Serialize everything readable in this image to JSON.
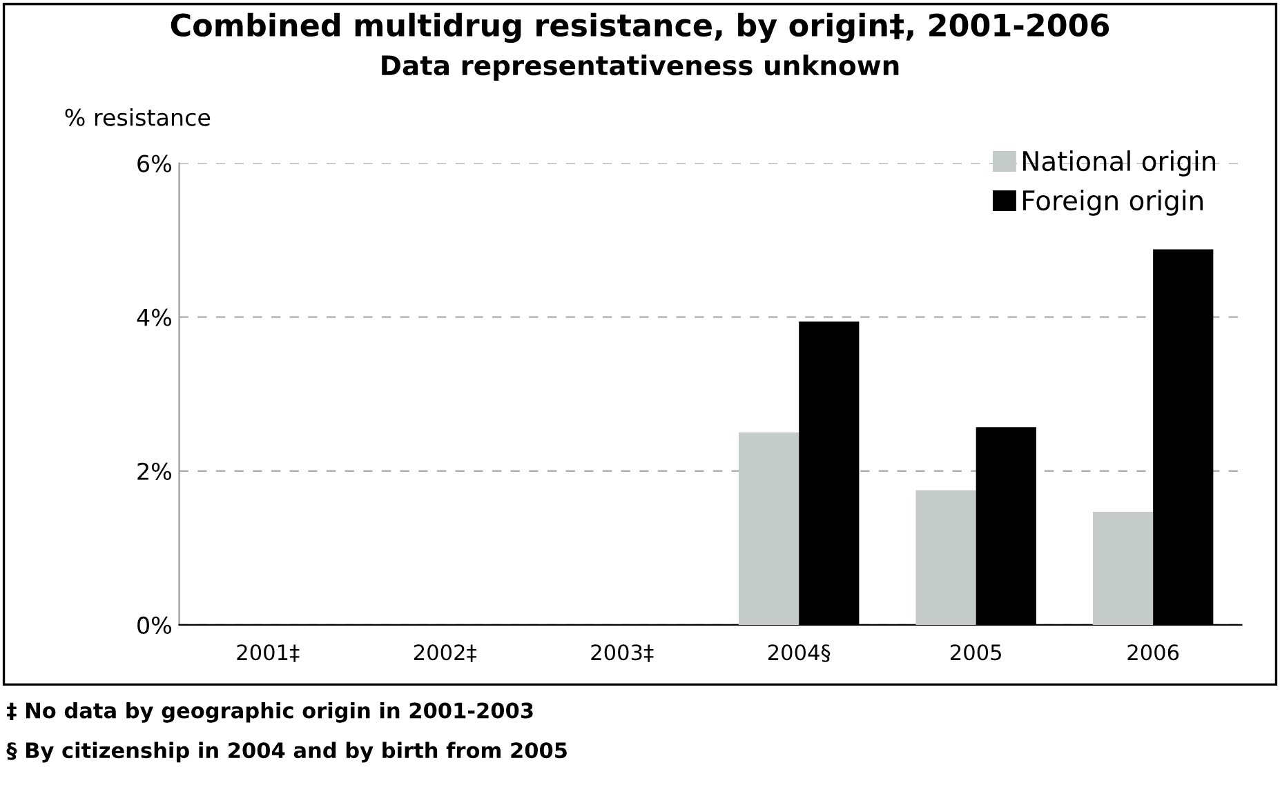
{
  "chart_data": {
    "type": "bar",
    "title": "Combined multidrug resistance, by origin‡, 2001-2006",
    "subtitle": "Data representativeness unknown",
    "ylabel": "% resistance",
    "categories": [
      "2001‡",
      "2002‡",
      "2003‡",
      "2004§",
      "2005",
      "2006"
    ],
    "series": [
      {
        "name": "National origin",
        "color": "#c4cbc8",
        "values": [
          null,
          null,
          null,
          2.5,
          1.75,
          1.47
        ]
      },
      {
        "name": "Foreign origin",
        "color": "#000000",
        "values": [
          null,
          null,
          null,
          3.94,
          2.57,
          4.88
        ]
      }
    ],
    "ylim": [
      0,
      6
    ],
    "yticks": [
      {
        "value": 0,
        "label": "0%"
      },
      {
        "value": 2,
        "label": "2%"
      },
      {
        "value": 4,
        "label": "4%"
      },
      {
        "value": 6,
        "label": "6%"
      }
    ],
    "grid": "y",
    "legend": "top right",
    "annotations": [
      "‡ No data by geographic origin in 2001-2003",
      "§ By citizenship in 2004 and by birth from 2005"
    ]
  }
}
